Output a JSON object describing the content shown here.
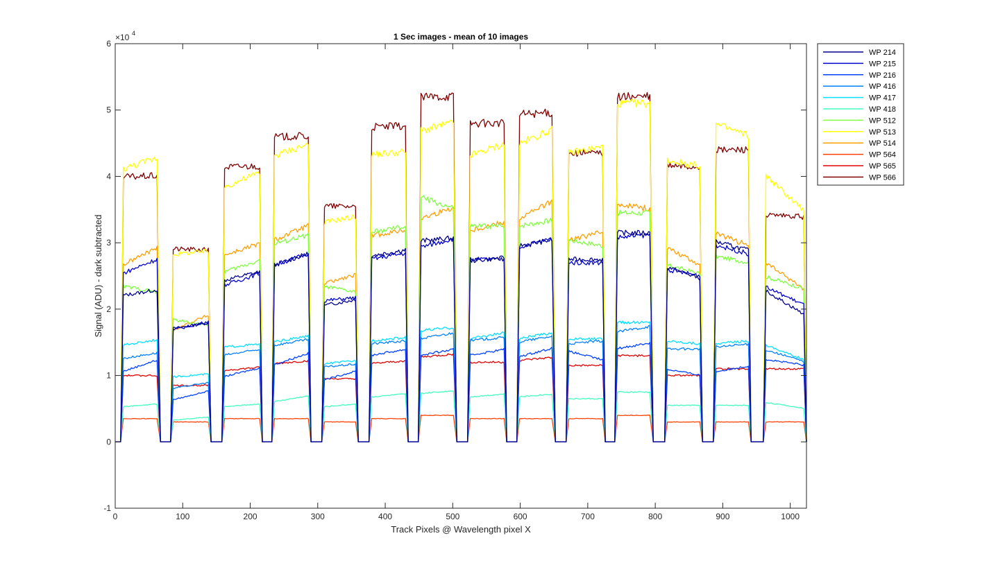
{
  "chart_data": {
    "type": "line",
    "title": "1 Sec images - mean of 10 images",
    "xlabel": "Track Pixels @ Wavelength pixel X",
    "ylabel": "Signal (ADU) - dark subtracted",
    "y_exponent_label": "×10",
    "y_exponent_power": "4",
    "xlim": [
      0,
      1024
    ],
    "ylim": [
      -1,
      6
    ],
    "xticks": [
      0,
      100,
      200,
      300,
      400,
      500,
      600,
      700,
      800,
      900,
      1000
    ],
    "yticks": [
      -1,
      0,
      1,
      2,
      3,
      4,
      5,
      6
    ],
    "legend_position": "outside-top-right",
    "segments": [
      [
        8,
        67
      ],
      [
        82,
        142
      ],
      [
        158,
        218
      ],
      [
        232,
        290
      ],
      [
        306,
        360
      ],
      [
        376,
        434
      ],
      [
        449,
        506
      ],
      [
        522,
        580
      ],
      [
        595,
        652
      ],
      [
        668,
        726
      ],
      [
        740,
        797
      ],
      [
        814,
        870
      ],
      [
        886,
        942
      ],
      [
        960,
        1024
      ]
    ],
    "series": [
      {
        "name": "WP 214",
        "color": "#00008f",
        "values": [
          2.25,
          1.75,
          2.5,
          2.75,
          2.1,
          2.85,
          3.05,
          2.75,
          3.0,
          2.75,
          3.15,
          2.55,
          2.95,
          2.1
        ],
        "slopes": [
          0.1,
          0.1,
          0.15,
          0.2,
          0.1,
          0.1,
          0.05,
          0.05,
          0.1,
          0.0,
          0.0,
          -0.2,
          -0.15,
          -0.4
        ]
      },
      {
        "name": "WP 215",
        "color": "#0000cc",
        "values": [
          2.65,
          1.75,
          2.45,
          2.75,
          2.15,
          2.8,
          3.0,
          2.75,
          3.0,
          2.7,
          3.1,
          2.55,
          2.9,
          2.2
        ],
        "slopes": [
          0.25,
          0.15,
          0.2,
          0.2,
          0.05,
          0.1,
          0.15,
          0.0,
          0.15,
          0.0,
          0.05,
          -0.1,
          -0.15,
          -0.3
        ]
      },
      {
        "name": "WP 216",
        "color": "#0040ff",
        "values": [
          1.15,
          0.7,
          1.05,
          1.25,
          1.0,
          1.35,
          1.35,
          1.35,
          1.35,
          1.3,
          1.45,
          1.05,
          1.1,
          1.2
        ],
        "slopes": [
          0.2,
          0.15,
          0.15,
          0.2,
          0.15,
          0.1,
          0.1,
          0.1,
          0.15,
          -0.15,
          0.1,
          -0.1,
          0.1,
          -0.1
        ]
      },
      {
        "name": "WP 416",
        "color": "#0080ff",
        "values": [
          1.3,
          0.85,
          1.35,
          1.5,
          1.15,
          1.5,
          1.6,
          1.55,
          1.55,
          1.5,
          1.7,
          1.4,
          1.45,
          1.3
        ],
        "slopes": [
          0.1,
          0.1,
          0.1,
          0.1,
          0.05,
          0.05,
          0.1,
          0.05,
          0.1,
          0.05,
          0.1,
          0.0,
          0.05,
          -0.2
        ]
      },
      {
        "name": "WP 417",
        "color": "#00e0ff",
        "values": [
          1.5,
          1.0,
          1.45,
          1.55,
          1.2,
          1.55,
          1.7,
          1.6,
          1.6,
          1.55,
          1.8,
          1.5,
          1.5,
          1.35
        ],
        "slopes": [
          0.1,
          0.05,
          0.05,
          0.1,
          0.05,
          0.05,
          0.05,
          0.1,
          0.1,
          0.0,
          0.0,
          -0.05,
          0.05,
          -0.25
        ]
      },
      {
        "name": "WP 418",
        "color": "#40ffbf",
        "values": [
          0.55,
          0.35,
          0.55,
          0.65,
          0.55,
          0.7,
          0.75,
          0.7,
          0.7,
          0.65,
          0.75,
          0.55,
          0.55,
          0.55
        ],
        "slopes": [
          0.05,
          0.05,
          0.05,
          0.1,
          0.05,
          0.05,
          0.05,
          0.05,
          0.05,
          0.0,
          0.0,
          0.0,
          0.0,
          -0.1
        ]
      },
      {
        "name": "WP 512",
        "color": "#80ff40",
        "values": [
          2.3,
          1.8,
          2.65,
          3.05,
          2.3,
          3.2,
          3.6,
          3.25,
          3.3,
          3.0,
          3.45,
          2.6,
          2.75,
          2.4
        ],
        "slopes": [
          -0.1,
          -0.1,
          0.2,
          0.15,
          -0.1,
          0.1,
          -0.2,
          0.0,
          0.1,
          -0.1,
          0.0,
          -0.15,
          -0.1,
          -0.2
        ]
      },
      {
        "name": "WP 513",
        "color": "#ffff00",
        "values": [
          4.2,
          2.85,
          3.95,
          4.4,
          3.35,
          4.35,
          4.75,
          4.4,
          4.6,
          4.4,
          5.1,
          4.2,
          4.7,
          3.75
        ],
        "slopes": [
          0.2,
          0.05,
          0.25,
          0.2,
          0.1,
          0.05,
          0.15,
          0.2,
          0.25,
          0.1,
          0.0,
          -0.1,
          -0.2,
          -0.6
        ]
      },
      {
        "name": "WP 514",
        "color": "#ff9f00",
        "values": [
          2.8,
          1.8,
          2.9,
          3.15,
          2.45,
          3.15,
          3.45,
          3.25,
          3.5,
          3.1,
          3.55,
          2.8,
          3.05,
          2.5
        ],
        "slopes": [
          0.3,
          0.25,
          0.2,
          0.25,
          0.15,
          0.1,
          0.2,
          0.15,
          0.3,
          0.15,
          -0.1,
          -0.3,
          -0.2,
          -0.45
        ]
      },
      {
        "name": "WP 564",
        "color": "#ff4000",
        "values": [
          0.35,
          0.3,
          0.35,
          0.35,
          0.3,
          0.35,
          0.4,
          0.35,
          0.35,
          0.35,
          0.4,
          0.3,
          0.3,
          0.3
        ],
        "slopes": [
          0,
          0,
          0,
          0,
          0,
          0,
          0,
          0,
          0,
          0,
          0,
          0,
          0,
          0
        ]
      },
      {
        "name": "WP 565",
        "color": "#e00000",
        "values": [
          1.0,
          0.85,
          1.1,
          1.2,
          0.95,
          1.2,
          1.3,
          1.2,
          1.25,
          1.15,
          1.3,
          1.0,
          1.1,
          1.1
        ],
        "slopes": [
          0,
          0,
          0.05,
          0.05,
          0,
          0.05,
          0.05,
          0,
          0.05,
          0,
          0,
          0,
          0,
          0
        ]
      },
      {
        "name": "WP 566",
        "color": "#800000",
        "values": [
          4.0,
          2.9,
          4.15,
          4.6,
          3.55,
          4.75,
          5.2,
          4.8,
          4.95,
          4.35,
          5.2,
          4.15,
          4.4,
          3.4
        ],
        "slopes": [
          0.02,
          -0.02,
          0.02,
          0.02,
          0.0,
          0.02,
          0.02,
          0.0,
          0.02,
          0.0,
          0.0,
          -0.02,
          0.02,
          -0.02
        ]
      }
    ]
  }
}
